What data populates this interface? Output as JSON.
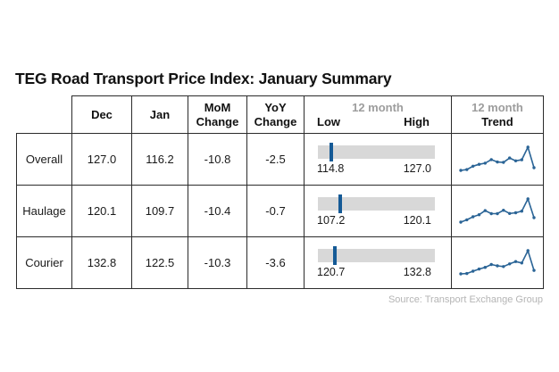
{
  "title": "TEG Road Transport Price Index: January Summary",
  "source_credit": "Source: Transport Exchange Group",
  "colors": {
    "accent_blue": "#155a96",
    "sparkline_blue": "#2a6496",
    "bar_gray": "#d8d8d8",
    "muted_text": "#9d9d9d",
    "border": "#2b2b2b",
    "source_text": "#b5b5b5"
  },
  "table": {
    "headers": {
      "dec": "Dec",
      "jan": "Jan",
      "mom_line1": "MoM",
      "mom_line2": "Change",
      "yoy_line1": "YoY",
      "yoy_line2": "Change",
      "range_top": "12 month",
      "range_low": "Low",
      "range_high": "High",
      "trend_top": "12 month",
      "trend_label": "Trend"
    },
    "rows": [
      {
        "label": "Overall",
        "dec": "127.0",
        "jan": "116.2",
        "mom": "-10.8",
        "yoy": "-2.5",
        "low": "114.8",
        "high": "127.0"
      },
      {
        "label": "Haulage",
        "dec": "120.1",
        "jan": "109.7",
        "mom": "-10.4",
        "yoy": "-0.7",
        "low": "107.2",
        "high": "120.1"
      },
      {
        "label": "Courier",
        "dec": "132.8",
        "jan": "122.5",
        "mom": "-10.3",
        "yoy": "-3.6",
        "low": "120.7",
        "high": "132.8"
      }
    ]
  },
  "chart_data": {
    "type": "table",
    "title": "TEG Road Transport Price Index: January Summary",
    "columns": [
      "",
      "Dec",
      "Jan",
      "MoM Change",
      "YoY Change",
      "12 month Low",
      "12 month High",
      "12 month Trend"
    ],
    "rows": [
      {
        "label": "Overall",
        "dec": 127.0,
        "jan": 116.2,
        "mom_change": -10.8,
        "yoy_change": -2.5,
        "low_12m": 114.8,
        "high_12m": 127.0,
        "current": 116.2,
        "trend_12m": [
          114.8,
          115.2,
          117.0,
          118.0,
          118.6,
          120.5,
          119.2,
          119.0,
          121.3,
          119.8,
          120.4,
          127.0,
          116.2
        ]
      },
      {
        "label": "Haulage",
        "dec": 120.1,
        "jan": 109.7,
        "mom_change": -10.4,
        "yoy_change": -0.7,
        "low_12m": 107.2,
        "high_12m": 120.1,
        "current": 109.7,
        "trend_12m": [
          107.2,
          108.5,
          110.2,
          111.3,
          113.6,
          111.9,
          111.9,
          113.8,
          112.0,
          112.4,
          113.3,
          120.1,
          109.7
        ]
      },
      {
        "label": "Courier",
        "dec": 132.8,
        "jan": 122.5,
        "mom_change": -10.3,
        "yoy_change": -3.6,
        "low_12m": 120.7,
        "high_12m": 132.8,
        "current": 122.5,
        "trend_12m": [
          120.7,
          120.9,
          122.1,
          123.2,
          124.1,
          125.6,
          124.9,
          124.5,
          125.9,
          127.1,
          126.4,
          132.8,
          122.5
        ]
      }
    ],
    "source": "Source: Transport Exchange Group",
    "layout": {
      "sparkline_points": 13,
      "range_bar_orientation": "horizontal",
      "grid": "full table borders"
    }
  }
}
